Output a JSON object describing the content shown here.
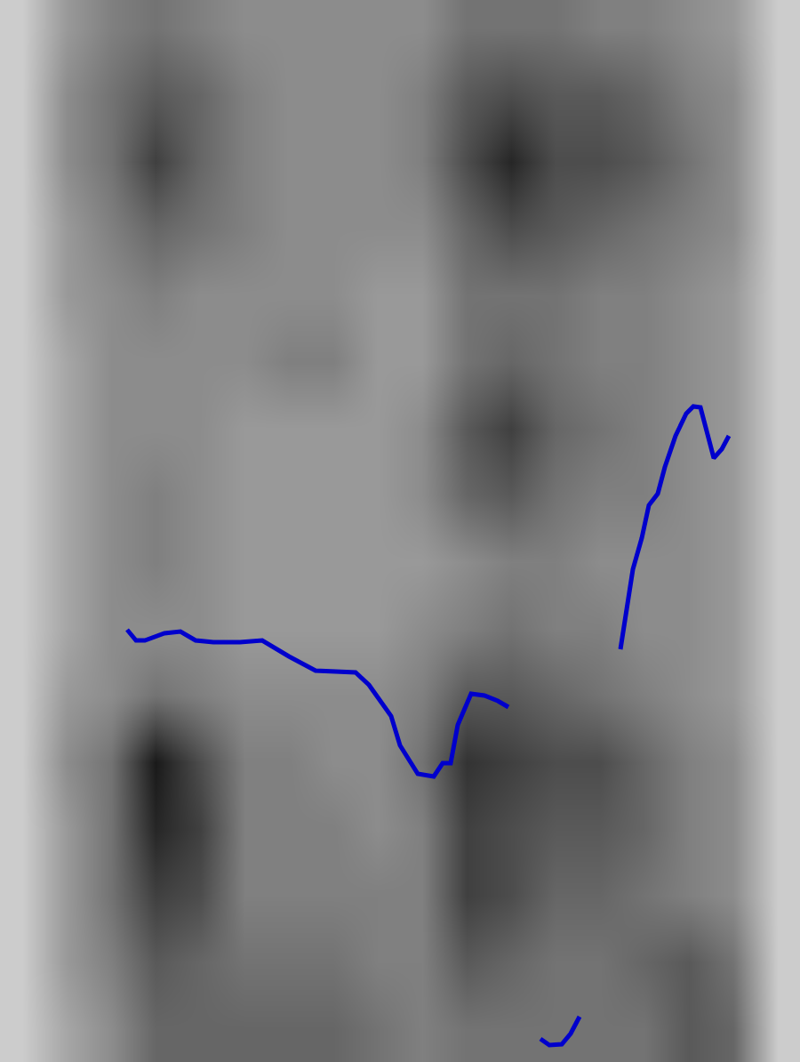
{
  "chart_data": {
    "type": "spectrogram",
    "tick_labels": false,
    "grid": false,
    "xlim": [
      0,
      900
    ],
    "ylim": [
      0,
      1194
    ],
    "heatmap": {
      "x": [
        25,
        75,
        125,
        175,
        225,
        275,
        325,
        375,
        425,
        475,
        525,
        575,
        625,
        675,
        725,
        775,
        825,
        875
      ],
      "y": [
        37,
        112,
        187,
        262,
        337,
        412,
        487,
        562,
        637,
        712,
        787,
        862,
        937,
        1012,
        1087,
        1162
      ],
      "zlim": [
        0,
        1
      ],
      "z": [
        [
          0.2,
          0.35,
          0.45,
          0.6,
          0.6,
          0.6,
          0.6,
          0.6,
          0.55,
          0.5,
          0.55,
          0.55,
          0.55,
          0.55,
          0.55,
          0.65,
          0.6,
          0.2
        ],
        [
          0.2,
          0.4,
          0.5,
          0.65,
          0.6,
          0.55,
          0.55,
          0.55,
          0.5,
          0.5,
          0.65,
          0.6,
          0.55,
          0.55,
          0.6,
          0.65,
          0.55,
          0.2
        ],
        [
          0.2,
          0.4,
          0.55,
          0.75,
          0.7,
          0.5,
          0.5,
          0.5,
          0.5,
          0.5,
          0.75,
          0.7,
          0.6,
          0.6,
          0.55,
          0.5,
          0.45,
          0.2
        ],
        [
          0.2,
          0.4,
          0.55,
          0.85,
          0.75,
          0.5,
          0.5,
          0.5,
          0.45,
          0.5,
          0.75,
          0.7,
          0.65,
          0.65,
          0.6,
          0.5,
          0.45,
          0.2
        ],
        [
          0.2,
          0.45,
          0.55,
          0.9,
          0.7,
          0.5,
          0.5,
          0.45,
          0.45,
          0.55,
          0.8,
          0.75,
          0.7,
          0.7,
          0.6,
          0.5,
          0.45,
          0.2
        ],
        [
          0.2,
          0.4,
          0.45,
          0.55,
          0.5,
          0.45,
          0.45,
          0.45,
          0.45,
          0.5,
          0.65,
          0.65,
          0.6,
          0.55,
          0.5,
          0.45,
          0.4,
          0.2
        ],
        [
          0.2,
          0.35,
          0.45,
          0.45,
          0.45,
          0.4,
          0.4,
          0.4,
          0.4,
          0.45,
          0.5,
          0.55,
          0.5,
          0.5,
          0.45,
          0.45,
          0.4,
          0.2
        ],
        [
          0.2,
          0.35,
          0.45,
          0.5,
          0.45,
          0.4,
          0.4,
          0.4,
          0.4,
          0.4,
          0.45,
          0.5,
          0.5,
          0.45,
          0.45,
          0.45,
          0.4,
          0.2
        ],
        [
          0.2,
          0.35,
          0.45,
          0.5,
          0.45,
          0.4,
          0.4,
          0.4,
          0.4,
          0.45,
          0.6,
          0.65,
          0.55,
          0.5,
          0.5,
          0.45,
          0.4,
          0.2
        ],
        [
          0.2,
          0.35,
          0.45,
          0.45,
          0.45,
          0.4,
          0.4,
          0.4,
          0.4,
          0.45,
          0.65,
          0.75,
          0.6,
          0.55,
          0.5,
          0.45,
          0.4,
          0.2
        ],
        [
          0.2,
          0.35,
          0.45,
          0.45,
          0.45,
          0.45,
          0.5,
          0.5,
          0.4,
          0.4,
          0.55,
          0.6,
          0.55,
          0.5,
          0.5,
          0.45,
          0.4,
          0.2
        ],
        [
          0.2,
          0.4,
          0.45,
          0.5,
          0.45,
          0.45,
          0.45,
          0.45,
          0.4,
          0.4,
          0.55,
          0.55,
          0.55,
          0.5,
          0.5,
          0.45,
          0.4,
          0.2
        ],
        [
          0.2,
          0.4,
          0.5,
          0.6,
          0.55,
          0.5,
          0.45,
          0.45,
          0.45,
          0.45,
          0.6,
          0.7,
          0.65,
          0.6,
          0.55,
          0.5,
          0.45,
          0.2
        ],
        [
          0.2,
          0.45,
          0.55,
          0.75,
          0.6,
          0.5,
          0.45,
          0.45,
          0.45,
          0.5,
          0.7,
          0.85,
          0.7,
          0.7,
          0.65,
          0.55,
          0.45,
          0.2
        ],
        [
          0.2,
          0.45,
          0.55,
          0.65,
          0.6,
          0.5,
          0.45,
          0.45,
          0.45,
          0.5,
          0.65,
          0.7,
          0.65,
          0.65,
          0.6,
          0.5,
          0.45,
          0.2
        ],
        [
          0.2,
          0.4,
          0.5,
          0.55,
          0.5,
          0.45,
          0.45,
          0.45,
          0.45,
          0.45,
          0.55,
          0.55,
          0.55,
          0.5,
          0.5,
          0.45,
          0.4,
          0.2
        ]
      ]
    },
    "series": [
      {
        "type": "line",
        "color": "#0000cc",
        "line_style": "solid",
        "x": [
          143,
          153,
          163,
          185,
          203,
          220,
          240,
          270,
          295,
          325,
          355,
          400,
          415,
          440,
          450,
          470,
          488,
          498,
          507,
          515,
          530,
          545,
          560,
          572,
          590,
          608,
          618,
          632,
          642,
          652,
          675,
          698,
          712,
          722,
          730,
          740,
          748,
          760,
          772,
          780,
          788,
          803,
          812,
          820
        ],
        "values": [
          486,
          474,
          474,
          482,
          484,
          474,
          472,
          472,
          474,
          456,
          440,
          438,
          424,
          389,
          356,
          324,
          321,
          336,
          336,
          379,
          414,
          412,
          406,
          399,
          null,
          26,
          19,
          20,
          32,
          51,
          null,
          464,
          554,
          589,
          626,
          639,
          669,
          704,
          729,
          737,
          736,
          679,
          689,
          704
        ]
      }
    ]
  }
}
